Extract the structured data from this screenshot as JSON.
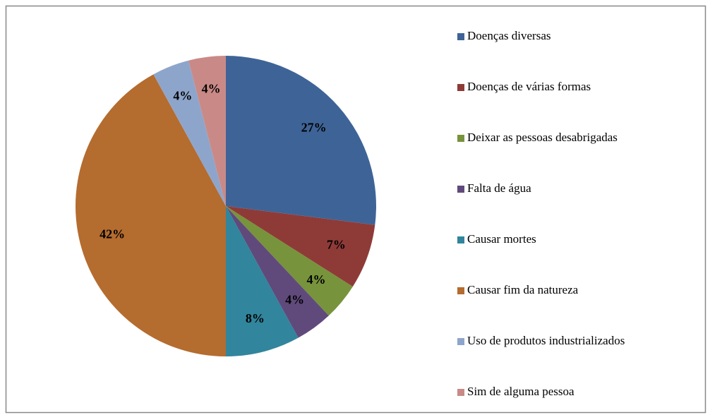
{
  "chart_data": {
    "type": "pie",
    "categories": [
      "Doenças diversas",
      "Doenças de várias formas",
      "Deixar as pessoas desabrigadas",
      "Falta de água",
      "Causar mortes",
      "Causar fim da natureza",
      "Uso de produtos industrializados",
      "Sim de alguma pessoa"
    ],
    "values": [
      27,
      7,
      4,
      4,
      8,
      42,
      4,
      4
    ],
    "value_labels": [
      "27%",
      "7%",
      "4%",
      "4%",
      "8%",
      "42%",
      "4%",
      "4%"
    ],
    "colors": [
      "#3E6497",
      "#8E3B38",
      "#77933C",
      "#604A7B",
      "#31859C",
      "#B46C2F",
      "#8EA5CB",
      "#C98A87"
    ],
    "legend": "right"
  }
}
